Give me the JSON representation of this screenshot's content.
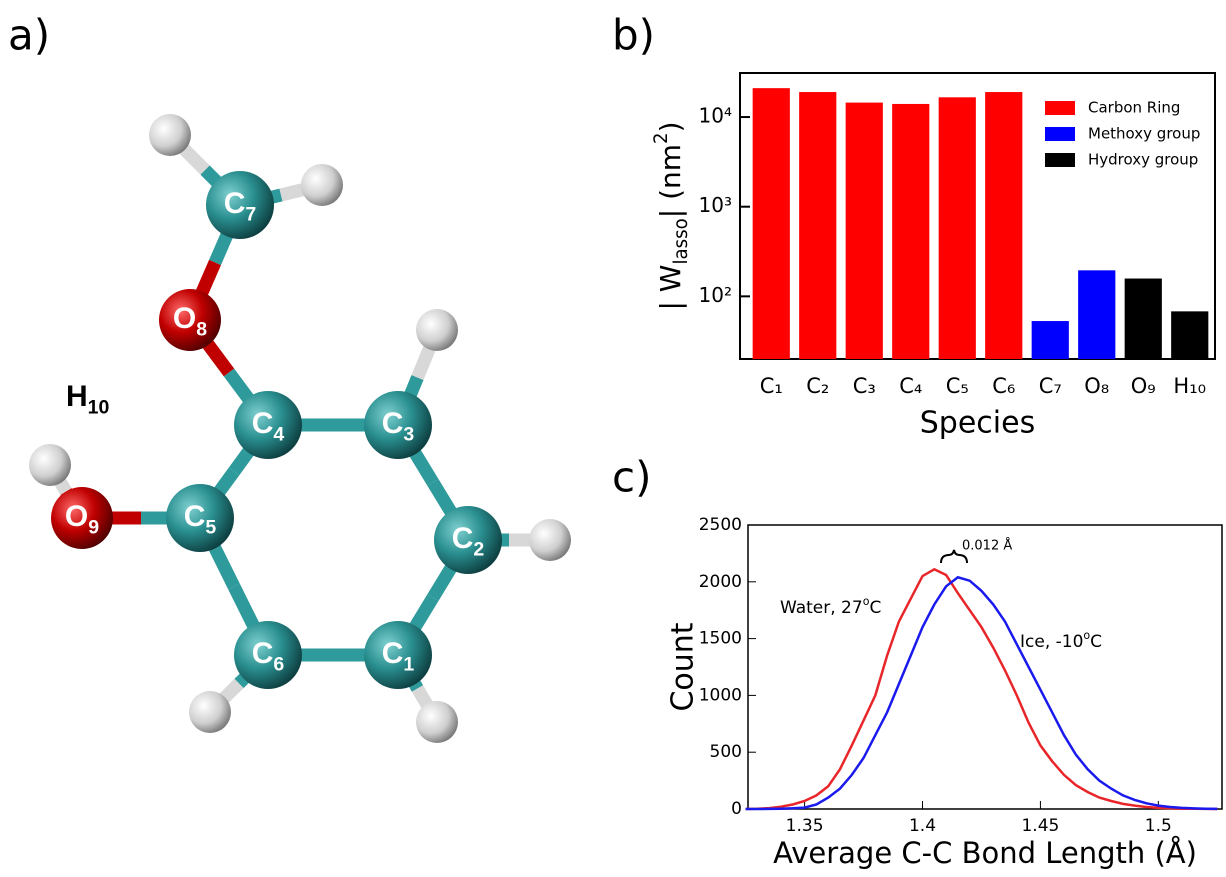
{
  "molecule": {
    "panel_label": "a)",
    "atoms": [
      {
        "element": "C",
        "index": "7"
      },
      {
        "element": "O",
        "index": "8"
      },
      {
        "element": "C",
        "index": "4"
      },
      {
        "element": "C",
        "index": "3"
      },
      {
        "element": "C",
        "index": "2"
      },
      {
        "element": "C",
        "index": "1"
      },
      {
        "element": "C",
        "index": "6"
      },
      {
        "element": "C",
        "index": "5"
      },
      {
        "element": "O",
        "index": "9"
      }
    ],
    "hydroxyl_label": {
      "element": "H",
      "index": "10"
    }
  },
  "chart_data": [
    {
      "type": "bar",
      "panel_label": "b)",
      "xlabel": "Species",
      "ylabel": [
        "| W",
        "lasso",
        "| (nm",
        "2",
        ")"
      ],
      "categories": [
        "C₁",
        "C₂",
        "C₃",
        "C₄",
        "C₅",
        "C₆",
        "C₇",
        "O₈",
        "O₉",
        "H₁₀"
      ],
      "series": [
        {
          "name": "Carbon Ring",
          "color": "#ff0000",
          "values": [
            21000,
            19000,
            14500,
            14000,
            16600,
            19000,
            null,
            null,
            null,
            null
          ]
        },
        {
          "name": "Methoxy group",
          "color": "#0000ff",
          "values": [
            null,
            null,
            null,
            null,
            null,
            null,
            53,
            195,
            null,
            null
          ]
        },
        {
          "name": "Hydroxy group",
          "color": "#000000",
          "values": [
            null,
            null,
            null,
            null,
            null,
            null,
            null,
            null,
            158,
            68
          ]
        }
      ],
      "log_scale": true,
      "ylim": [
        20,
        31000
      ],
      "yticks": [
        {
          "value": 100,
          "label": "10²"
        },
        {
          "value": 1000,
          "label": "10³"
        },
        {
          "value": 10000,
          "label": "10⁴"
        }
      ],
      "legend": "upper right"
    },
    {
      "type": "line",
      "panel_label": "c)",
      "xlabel": "Average C-C Bond Length (Å)",
      "ylabel": "Count",
      "x": [
        1.325,
        1.33,
        1.335,
        1.34,
        1.345,
        1.35,
        1.355,
        1.36,
        1.365,
        1.37,
        1.375,
        1.38,
        1.385,
        1.39,
        1.395,
        1.4,
        1.405,
        1.41,
        1.415,
        1.42,
        1.425,
        1.43,
        1.435,
        1.44,
        1.445,
        1.45,
        1.455,
        1.46,
        1.465,
        1.47,
        1.475,
        1.48,
        1.485,
        1.49,
        1.495,
        1.5,
        1.505,
        1.51,
        1.515,
        1.52,
        1.525
      ],
      "series": [
        {
          "color": "#e8262a",
          "values": [
            0,
            2,
            8,
            20,
            40,
            70,
            120,
            200,
            350,
            560,
            780,
            1000,
            1350,
            1650,
            1850,
            2050,
            2110,
            2060,
            1900,
            1750,
            1600,
            1420,
            1220,
            1000,
            760,
            560,
            420,
            300,
            210,
            150,
            100,
            70,
            45,
            30,
            18,
            10,
            6,
            3,
            2,
            1,
            0
          ]
        },
        {
          "color": "#1a1aee",
          "values": [
            0,
            0,
            1,
            3,
            6,
            12,
            40,
            100,
            180,
            300,
            450,
            650,
            850,
            1100,
            1350,
            1600,
            1800,
            1960,
            2040,
            2010,
            1920,
            1800,
            1650,
            1450,
            1250,
            1050,
            850,
            650,
            480,
            350,
            250,
            180,
            120,
            80,
            50,
            30,
            18,
            10,
            5,
            3,
            1
          ]
        }
      ],
      "xlim": [
        1.326,
        1.527
      ],
      "xticks": [
        1.35,
        1.4,
        1.45,
        1.5
      ],
      "ylim": [
        0,
        2500
      ],
      "yticks": [
        0,
        500,
        1000,
        1500,
        2000,
        2500
      ],
      "annotations": [
        [
          "Water, 27",
          "o",
          "C"
        ],
        [
          "Ice, -10",
          "o",
          "C"
        ],
        [
          "0.012 Å"
        ]
      ]
    }
  ]
}
